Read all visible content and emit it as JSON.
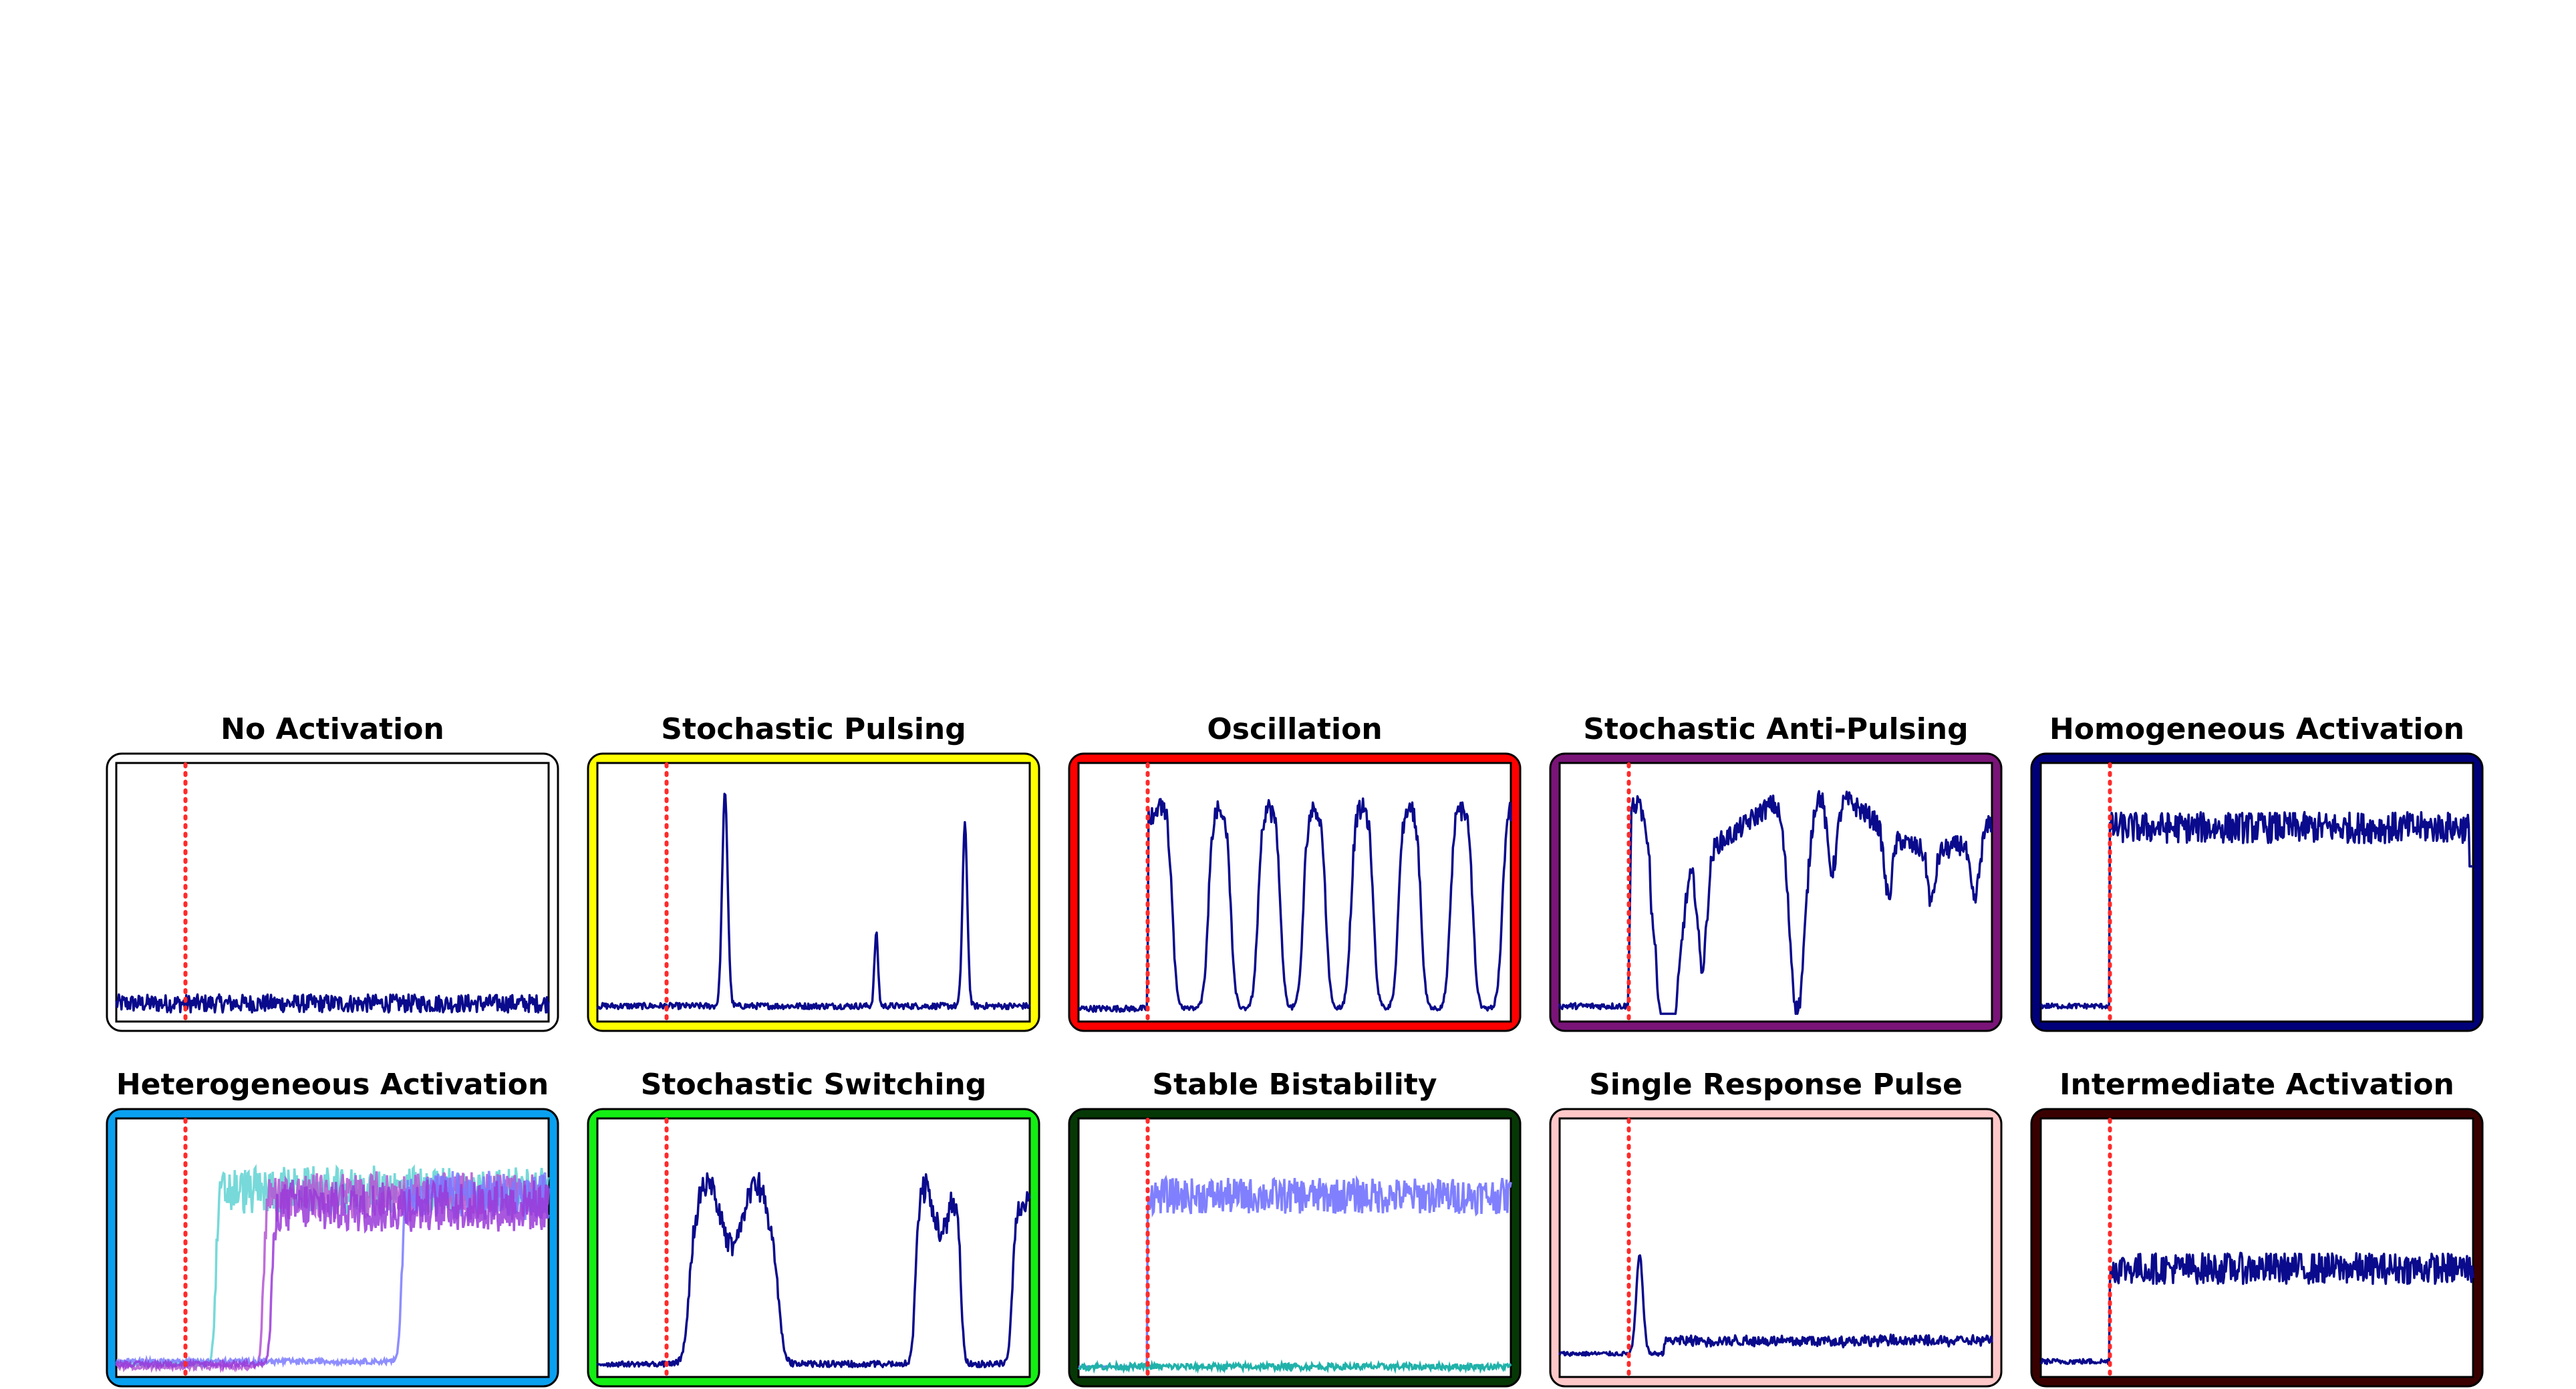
{
  "figure": {
    "chart_data": [
      {
        "type": "line",
        "title": "No Activation",
        "frame_color": "#ffffff",
        "pattern": "none",
        "xlim": [
          0,
          100
        ],
        "ylim": [
          0,
          1
        ],
        "stimulus_x": 16
      },
      {
        "type": "line",
        "title": "Stochastic Pulsing",
        "frame_color": "#ffff00",
        "pattern": "pulses",
        "xlim": [
          0,
          100
        ],
        "ylim": [
          0,
          1
        ],
        "stimulus_x": 16
      },
      {
        "type": "line",
        "title": "Oscillation",
        "frame_color": "#ff0000",
        "pattern": "oscillation",
        "xlim": [
          0,
          100
        ],
        "ylim": [
          0,
          1
        ],
        "stimulus_x": 16
      },
      {
        "type": "line",
        "title": "Stochastic Anti-Pulsing",
        "frame_color": "#7a1478",
        "pattern": "antipulse",
        "xlim": [
          0,
          100
        ],
        "ylim": [
          0,
          1
        ],
        "stimulus_x": 16
      },
      {
        "type": "line",
        "title": "Homogeneous Activation",
        "frame_color": "#00007a",
        "pattern": "homogeneous",
        "xlim": [
          0,
          100
        ],
        "ylim": [
          0,
          1
        ],
        "stimulus_x": 16
      },
      {
        "type": "line",
        "title": "Heterogeneous Activation",
        "frame_color": "#0aa0f0",
        "pattern": "heterogeneous",
        "xlim": [
          0,
          100
        ],
        "ylim": [
          0,
          1
        ],
        "stimulus_x": 16
      },
      {
        "type": "line",
        "title": "Stochastic Switching",
        "frame_color": "#14ee14",
        "pattern": "switching",
        "xlim": [
          0,
          100
        ],
        "ylim": [
          0,
          1
        ],
        "stimulus_x": 16
      },
      {
        "type": "line",
        "title": "Stable Bistability",
        "frame_color": "#063806",
        "pattern": "bistable",
        "xlim": [
          0,
          100
        ],
        "ylim": [
          0,
          1
        ],
        "stimulus_x": 16
      },
      {
        "type": "line",
        "title": "Single Response Pulse",
        "frame_color": "#ffc8c8",
        "pattern": "singlepulse",
        "xlim": [
          0,
          100
        ],
        "ylim": [
          0,
          1
        ],
        "stimulus_x": 16
      },
      {
        "type": "line",
        "title": "Intermediate Activation",
        "frame_color": "#3a0000",
        "pattern": "intermediate",
        "xlim": [
          0,
          100
        ],
        "ylim": [
          0,
          1
        ],
        "stimulus_x": 16
      }
    ]
  }
}
